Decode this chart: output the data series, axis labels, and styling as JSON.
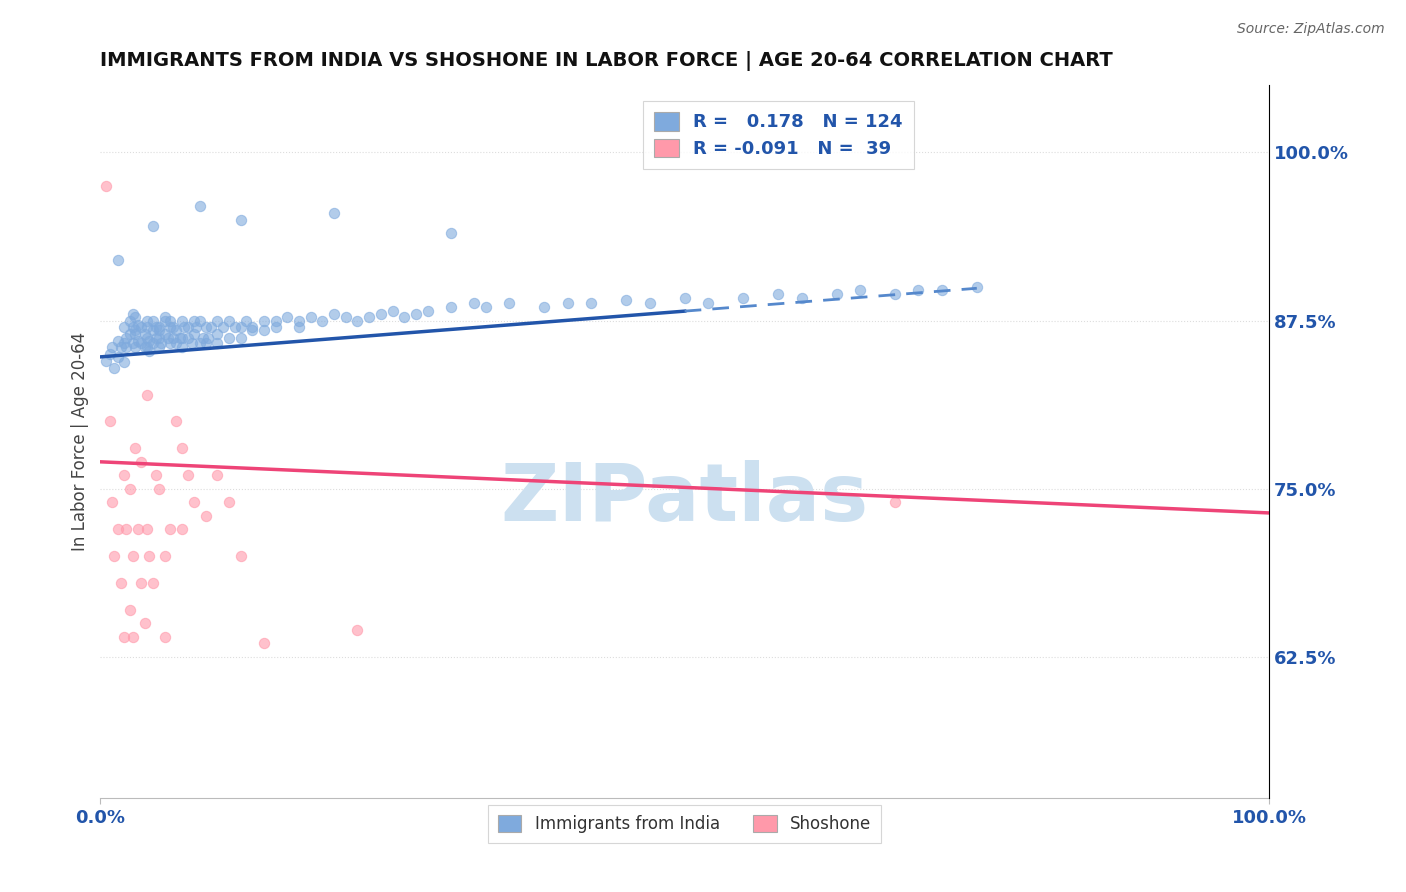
{
  "title": "IMMIGRANTS FROM INDIA VS SHOSHONE IN LABOR FORCE | AGE 20-64 CORRELATION CHART",
  "source_text": "Source: ZipAtlas.com",
  "ylabel": "In Labor Force | Age 20-64",
  "right_yticks": [
    0.625,
    0.75,
    0.875,
    1.0
  ],
  "right_yticklabels": [
    "62.5%",
    "75.0%",
    "87.5%",
    "100.0%"
  ],
  "xlim": [
    0.0,
    1.0
  ],
  "ylim": [
    0.52,
    1.05
  ],
  "legend_r_blue": "0.178",
  "legend_n_blue": "124",
  "legend_r_pink": "-0.091",
  "legend_n_pink": "39",
  "blue_color": "#7faadd",
  "pink_color": "#ff99aa",
  "trend_blue_solid_color": "#2255aa",
  "trend_blue_dash_color": "#5588cc",
  "trend_pink_color": "#ee4477",
  "watermark_text": "ZIPatlas",
  "watermark_color": "#cce0f0",
  "grid_color": "#dddddd",
  "bg_color": "#ffffff",
  "title_color": "#111111",
  "axis_tick_color": "#2255aa",
  "ylabel_color": "#444444",
  "blue_scatter_x": [
    0.005,
    0.008,
    0.01,
    0.012,
    0.015,
    0.015,
    0.018,
    0.02,
    0.02,
    0.02,
    0.022,
    0.022,
    0.025,
    0.025,
    0.028,
    0.028,
    0.028,
    0.03,
    0.03,
    0.03,
    0.03,
    0.032,
    0.032,
    0.035,
    0.035,
    0.038,
    0.038,
    0.04,
    0.04,
    0.04,
    0.04,
    0.042,
    0.042,
    0.045,
    0.045,
    0.045,
    0.048,
    0.048,
    0.05,
    0.05,
    0.05,
    0.05,
    0.052,
    0.055,
    0.055,
    0.055,
    0.058,
    0.06,
    0.06,
    0.06,
    0.062,
    0.062,
    0.065,
    0.065,
    0.068,
    0.07,
    0.07,
    0.07,
    0.072,
    0.075,
    0.075,
    0.078,
    0.08,
    0.08,
    0.082,
    0.085,
    0.085,
    0.088,
    0.09,
    0.09,
    0.092,
    0.095,
    0.1,
    0.1,
    0.1,
    0.105,
    0.11,
    0.11,
    0.115,
    0.12,
    0.12,
    0.125,
    0.13,
    0.13,
    0.14,
    0.14,
    0.15,
    0.15,
    0.16,
    0.17,
    0.17,
    0.18,
    0.19,
    0.2,
    0.21,
    0.22,
    0.23,
    0.24,
    0.25,
    0.26,
    0.27,
    0.28,
    0.3,
    0.32,
    0.33,
    0.35,
    0.38,
    0.4,
    0.42,
    0.45,
    0.47,
    0.5,
    0.52,
    0.55,
    0.58,
    0.6,
    0.63,
    0.65,
    0.68,
    0.7,
    0.72,
    0.75
  ],
  "blue_scatter_y": [
    0.845,
    0.85,
    0.855,
    0.84,
    0.86,
    0.848,
    0.855,
    0.87,
    0.858,
    0.844,
    0.862,
    0.855,
    0.875,
    0.865,
    0.88,
    0.87,
    0.858,
    0.865,
    0.878,
    0.855,
    0.868,
    0.872,
    0.86,
    0.87,
    0.858,
    0.865,
    0.855,
    0.875,
    0.862,
    0.855,
    0.87,
    0.86,
    0.852,
    0.868,
    0.858,
    0.875,
    0.862,
    0.87,
    0.868,
    0.855,
    0.862,
    0.87,
    0.858,
    0.875,
    0.865,
    0.878,
    0.862,
    0.87,
    0.858,
    0.875,
    0.862,
    0.87,
    0.858,
    0.868,
    0.862,
    0.875,
    0.862,
    0.855,
    0.87,
    0.862,
    0.87,
    0.858,
    0.875,
    0.865,
    0.87,
    0.858,
    0.875,
    0.862,
    0.87,
    0.858,
    0.862,
    0.87,
    0.875,
    0.865,
    0.858,
    0.87,
    0.862,
    0.875,
    0.87,
    0.862,
    0.87,
    0.875,
    0.868,
    0.87,
    0.875,
    0.868,
    0.875,
    0.87,
    0.878,
    0.875,
    0.87,
    0.878,
    0.875,
    0.88,
    0.878,
    0.875,
    0.878,
    0.88,
    0.882,
    0.878,
    0.88,
    0.882,
    0.885,
    0.888,
    0.885,
    0.888,
    0.885,
    0.888,
    0.888,
    0.89,
    0.888,
    0.892,
    0.888,
    0.892,
    0.895,
    0.892,
    0.895,
    0.898,
    0.895,
    0.898,
    0.898,
    0.9
  ],
  "blue_extra_high_x": [
    0.015,
    0.045,
    0.085,
    0.12,
    0.2,
    0.3
  ],
  "blue_extra_high_y": [
    0.92,
    0.945,
    0.96,
    0.95,
    0.955,
    0.94
  ],
  "pink_scatter_x": [
    0.005,
    0.008,
    0.01,
    0.012,
    0.015,
    0.018,
    0.02,
    0.02,
    0.022,
    0.025,
    0.025,
    0.028,
    0.028,
    0.03,
    0.032,
    0.035,
    0.035,
    0.038,
    0.04,
    0.04,
    0.042,
    0.045,
    0.048,
    0.05,
    0.055,
    0.055,
    0.06,
    0.065,
    0.07,
    0.07,
    0.075,
    0.08,
    0.09,
    0.1,
    0.11,
    0.12,
    0.14,
    0.22,
    0.68
  ],
  "pink_scatter_y": [
    0.975,
    0.8,
    0.74,
    0.7,
    0.72,
    0.68,
    0.76,
    0.64,
    0.72,
    0.75,
    0.66,
    0.7,
    0.64,
    0.78,
    0.72,
    0.77,
    0.68,
    0.65,
    0.82,
    0.72,
    0.7,
    0.68,
    0.76,
    0.75,
    0.7,
    0.64,
    0.72,
    0.8,
    0.72,
    0.78,
    0.76,
    0.74,
    0.73,
    0.76,
    0.74,
    0.7,
    0.635,
    0.645,
    0.74
  ],
  "blue_trend_x0": 0.0,
  "blue_trend_x_solid_end": 0.5,
  "blue_trend_x1": 0.75,
  "blue_trend_y0": 0.848,
  "blue_trend_slope": 0.068,
  "pink_trend_x0": 0.0,
  "pink_trend_x1": 1.0,
  "pink_trend_y0": 0.77,
  "pink_trend_slope": -0.038
}
